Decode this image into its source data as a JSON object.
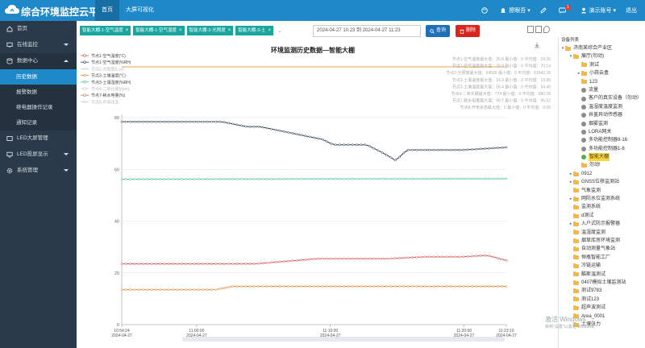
{
  "header": {
    "title": "综合环境监控云平台",
    "nav": [
      "首页",
      "大屏可视化"
    ],
    "right": [
      {
        "label": "",
        "icon": "palette-icon"
      },
      {
        "label": "擦眼吾 ▾",
        "icon": "bell-icon"
      },
      {
        "label": "",
        "icon": "edit-icon"
      },
      {
        "label": "",
        "icon": "message-icon",
        "badge": "1"
      },
      {
        "label": "演示账号 ▾",
        "icon": "user-icon"
      },
      {
        "label": "退出",
        "icon": ""
      }
    ]
  },
  "sidebar": {
    "items": [
      {
        "label": "首页",
        "icon": "home-icon"
      },
      {
        "label": "在线监控",
        "icon": "monitor-icon"
      },
      {
        "label": "数据中心",
        "icon": "database-icon"
      },
      {
        "label": "历史数据",
        "sub": true,
        "active": true
      },
      {
        "label": "报警数据",
        "sub": true
      },
      {
        "label": "继电器操作记录",
        "sub": true
      },
      {
        "label": "通知记录",
        "sub": true
      },
      {
        "label": "LED大屏管理",
        "icon": "screen-icon"
      },
      {
        "label": "LED投屏显示",
        "icon": "cast-icon"
      },
      {
        "label": "系统管理",
        "icon": "gear-icon"
      }
    ]
  },
  "toolbar": {
    "tags": [
      "智能大棚-1-空气温度",
      "智能大棚-1-空气湿度",
      "智能大棚-2-光照度",
      "智能大棚-3-土"
    ],
    "date_range": "2024-04-27 10:23 到 2024-04-27 11:23",
    "search_label": "查询",
    "delete_label": "删除"
  },
  "chart_data": {
    "type": "line",
    "title": "环境监测历史数据—智能大棚",
    "y_ticks": [
      "80",
      "60",
      "40",
      "20",
      "0"
    ],
    "ylim": [
      0,
      80
    ],
    "x_ticks": [
      {
        "t": "10:54:24",
        "d": "2024-04-27"
      },
      {
        "t": "11:00:00",
        "d": "2024-04-27"
      },
      {
        "t": "11:10:00",
        "d": "2024-04-27"
      },
      {
        "t": "11:20:00",
        "d": "2024-04-27"
      },
      {
        "t": "11:23:10",
        "d": "2024-04-27"
      }
    ],
    "xlim": [
      0,
      1726
    ],
    "tick_positions": [
      0,
      336,
      936,
      1536,
      1726
    ],
    "series": [
      {
        "name": "节点1-空气温度(℃)",
        "color": "#d9534f",
        "dim": false,
        "x": [
          0,
          400,
          600,
          880,
          1040,
          1200,
          1360,
          1530,
          1640,
          1726
        ],
        "y": [
          23.5,
          23.5,
          23.5,
          25.5,
          25.5,
          25.5,
          26.2,
          26.2,
          26.8,
          24.8
        ]
      },
      {
        "name": "节点1-空气湿度(%RH)",
        "color": "#2c3e50",
        "dim": false,
        "x": [
          0,
          450,
          560,
          620,
          900,
          950,
          1100,
          1180,
          1230,
          1280,
          1530,
          1726
        ],
        "y": [
          78.4,
          78.4,
          76.5,
          76.5,
          71.6,
          69.5,
          69.5,
          66,
          63.4,
          67.5,
          67.5,
          68.5
        ]
      },
      {
        "name": "节点2-光照度(Lux)",
        "color": "#f0c36d",
        "dim": true
      },
      {
        "name": "节点3-土壤温度(℃)",
        "color": "#e08a3c",
        "dim": false,
        "x": [
          0,
          420,
          500,
          1726
        ],
        "y": [
          13.5,
          13.5,
          14.8,
          14.8
        ]
      },
      {
        "name": "节点3-土壤湿度(%RH)",
        "color": "#4fc3a1",
        "dim": false,
        "x": [
          0,
          1726
        ],
        "y": [
          56.2,
          56.4
        ]
      },
      {
        "name": "节点4-二氧化碳(ppm)",
        "color": "#9aa7b5",
        "dim": true
      },
      {
        "name": "节点7-耗水电量(%)",
        "color": "#c0864a",
        "dim": false
      },
      {
        "name": "节点8-开电状态",
        "color": "#aab",
        "dim": true
      }
    ],
    "stats": [
      "节点1-空气温度最大值：26.8  最小值：0  平均值：24.25",
      "节点1-空气湿度最大值：78.9  最小值：0  平均值：70.14",
      "节点2-光照度最大值：64536  最小值：0  平均值：61542.16",
      "节点3-土壤温度最大值：14.9  最小值：0  平均值：13.95",
      "节点3-土壤湿度最大值：56.4  最小值：0  平均值：54.46",
      "节点4-二氧化碳最大值：774  最小值：0  平均值：680.35",
      "节点7-耗水电量最大值：98.7  最小值：0  平均值：95.52",
      "节点8-开电状态最大值：0  最小值：0  平均值：0.00"
    ]
  },
  "tree": {
    "header": "设备列表",
    "items": [
      {
        "label": "济南某综合产业区",
        "level": 0,
        "type": "folder",
        "tog": "▾"
      },
      {
        "label": "展厅(勿动)",
        "level": 1,
        "type": "folder",
        "tog": "▾"
      },
      {
        "label": "测试",
        "level": 2,
        "type": "folder",
        "tog": ""
      },
      {
        "label": "小蒜云盒",
        "level": 2,
        "type": "folder",
        "tog": "▸"
      },
      {
        "label": "123",
        "level": 2,
        "type": "folder",
        "tog": ""
      },
      {
        "label": "流量",
        "level": 2,
        "type": "dev"
      },
      {
        "label": "客户的真实设备（勿动）",
        "level": 2,
        "type": "dev"
      },
      {
        "label": "温湿度温度监测",
        "level": 2,
        "type": "dev"
      },
      {
        "label": "井盖异动传感器",
        "level": 2,
        "type": "dev"
      },
      {
        "label": "烟雾监测",
        "level": 2,
        "type": "dev"
      },
      {
        "label": "LORA网关",
        "level": 2,
        "type": "dev"
      },
      {
        "label": "多功能控制器9-16",
        "level": 2,
        "type": "dev"
      },
      {
        "label": "多功能控制器1-8",
        "level": 2,
        "type": "dev"
      },
      {
        "label": "智能大棚",
        "level": 2,
        "type": "dev",
        "green": true,
        "sel": true
      },
      {
        "label": "勿动!",
        "level": 2,
        "type": "folder",
        "tog": ""
      },
      {
        "label": "0912",
        "level": 1,
        "type": "folder",
        "tog": "▸"
      },
      {
        "label": "GNSS位移监测站",
        "level": 1,
        "type": "folder",
        "tog": "▸"
      },
      {
        "label": "气象监测",
        "level": 1,
        "type": "folder",
        "tog": ""
      },
      {
        "label": "网防水位监测系统",
        "level": 1,
        "type": "folder",
        "tog": "▸"
      },
      {
        "label": "监测系统",
        "level": 1,
        "type": "folder",
        "tog": ""
      },
      {
        "label": "d测试",
        "level": 1,
        "type": "folder",
        "tog": ""
      },
      {
        "label": "入户式防示报警器",
        "level": 1,
        "type": "folder",
        "tog": "▸"
      },
      {
        "label": "温湿度监测",
        "level": 1,
        "type": "folder",
        "tog": ""
      },
      {
        "label": "烟草库房环境监测",
        "level": 1,
        "type": "folder",
        "tog": ""
      },
      {
        "label": "自动测量气象站",
        "level": 1,
        "type": "folder",
        "tog": ""
      },
      {
        "label": "恒瓶智能工厂",
        "level": 1,
        "type": "folder",
        "tog": ""
      },
      {
        "label": "冷链运输",
        "level": 1,
        "type": "folder",
        "tog": ""
      },
      {
        "label": "酷斯温测试",
        "level": 1,
        "type": "folder",
        "tog": ""
      },
      {
        "label": "0407模拟土壤监测站",
        "level": 1,
        "type": "folder",
        "tog": ""
      },
      {
        "label": "测试9783",
        "level": 1,
        "type": "folder",
        "tog": ""
      },
      {
        "label": "测试123",
        "level": 1,
        "type": "folder",
        "tog": ""
      },
      {
        "label": "超声波测试",
        "level": 1,
        "type": "folder",
        "tog": ""
      },
      {
        "label": "Area_0001",
        "level": 1,
        "type": "folder",
        "tog": ""
      },
      {
        "label": "土壤张力",
        "level": 1,
        "type": "folder",
        "tog": ""
      }
    ]
  },
  "watermark": {
    "line1": "激活 Windows",
    "line2": "转到\"设置\"以激活 Windows。"
  }
}
